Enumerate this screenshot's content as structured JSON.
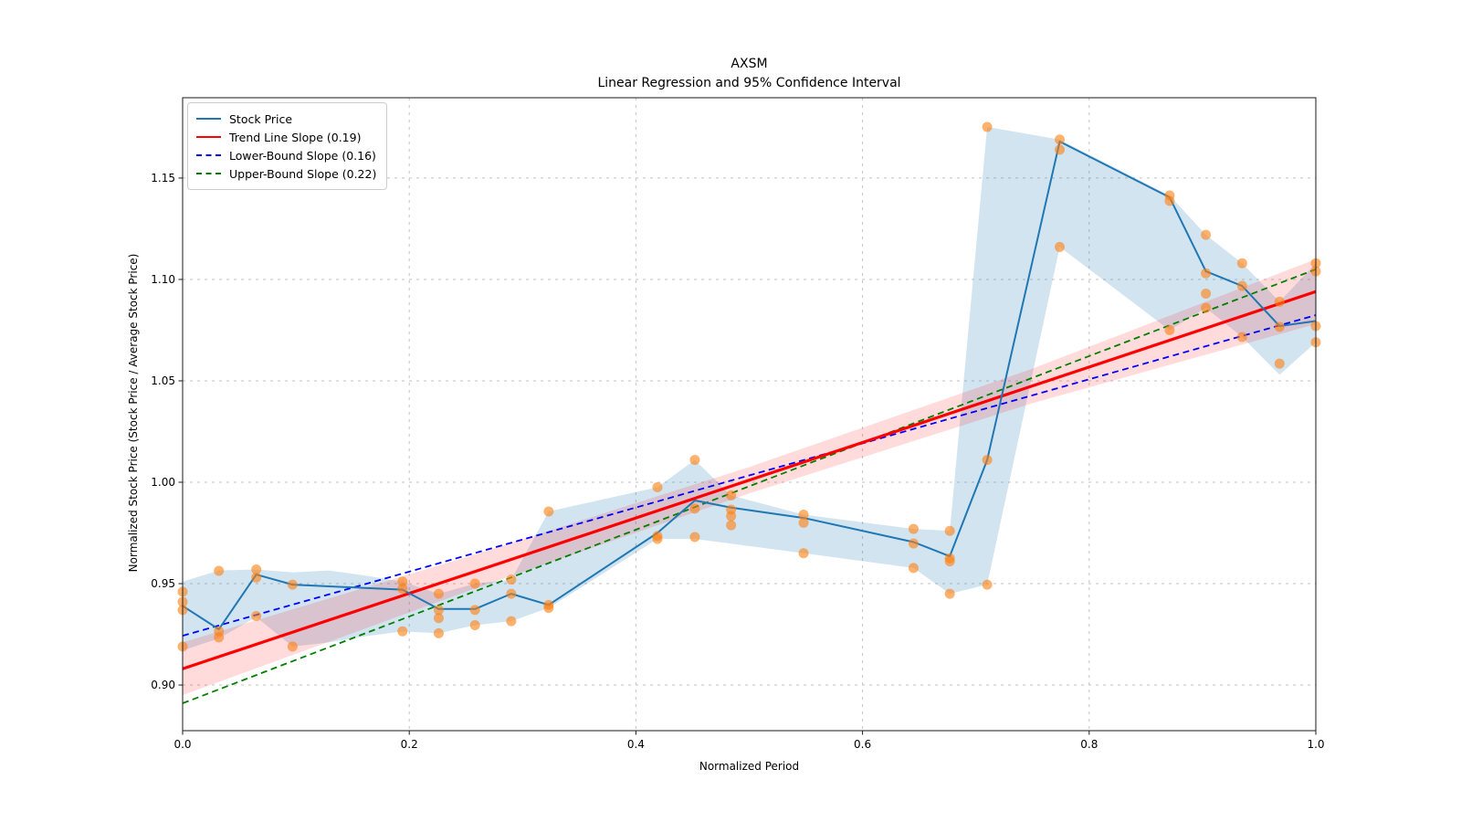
{
  "chart_data": {
    "type": "line",
    "title": "AXSM",
    "subtitle": "Linear Regression and 95% Confidence Interval",
    "xlabel": "Normalized Period",
    "ylabel": "Normalized Stock Price (Stock Price / Average Stock Price)",
    "xlim": [
      0,
      1
    ],
    "ylim": [
      0.8775,
      1.1896
    ],
    "grid": true,
    "legend_position": "upper-left",
    "x_ticks": [
      {
        "v": 0.0,
        "label": "0.0"
      },
      {
        "v": 0.2,
        "label": "0.2"
      },
      {
        "v": 0.4,
        "label": "0.4"
      },
      {
        "v": 0.6,
        "label": "0.6"
      },
      {
        "v": 0.8,
        "label": "0.8"
      },
      {
        "v": 1.0,
        "label": "1.0"
      }
    ],
    "y_ticks": [
      {
        "v": 0.9,
        "label": "0.90"
      },
      {
        "v": 0.95,
        "label": "0.95"
      },
      {
        "v": 1.0,
        "label": "1.00"
      },
      {
        "v": 1.05,
        "label": "1.05"
      },
      {
        "v": 1.1,
        "label": "1.10"
      },
      {
        "v": 1.15,
        "label": "1.15"
      }
    ],
    "legend": [
      {
        "label": "Stock Price",
        "color": "#1f77b4",
        "style": "solid"
      },
      {
        "label": "Trend Line Slope (0.19)",
        "color": "#ff0000",
        "style": "solid"
      },
      {
        "label": "Lower-Bound Slope (0.16)",
        "color": "#0000ff",
        "style": "dashed"
      },
      {
        "label": "Upper-Bound Slope (0.22)",
        "color": "#008000",
        "style": "dashed"
      }
    ],
    "series": {
      "stock_line": {
        "name": "Stock Price",
        "x": [
          0,
          0.032,
          0.065,
          0.097,
          0.194,
          0.226,
          0.258,
          0.29,
          0.323,
          0.419,
          0.452,
          0.484,
          0.548,
          0.645,
          0.677,
          0.71,
          0.774,
          0.871,
          0.903,
          0.935,
          0.968,
          1.0
        ],
        "y": [
          0.939,
          0.9275,
          0.9545,
          0.9495,
          0.947,
          0.9375,
          0.9375,
          0.945,
          0.9395,
          0.975,
          0.991,
          0.9875,
          0.9824,
          0.9705,
          0.9635,
          1.011,
          1.168,
          1.1405,
          1.104,
          1.0968,
          1.077,
          1.0795
        ]
      },
      "stock_range_band": {
        "x": [
          0,
          0.032,
          0.065,
          0.097,
          0.129,
          0.161,
          0.194,
          0.226,
          0.258,
          0.29,
          0.323,
          0.419,
          0.452,
          0.484,
          0.548,
          0.645,
          0.677,
          0.71,
          0.774,
          0.871,
          0.903,
          0.935,
          0.968,
          1.0
        ],
        "top": [
          0.951,
          0.9565,
          0.957,
          0.9555,
          0.9565,
          0.954,
          0.951,
          0.945,
          0.95,
          0.952,
          0.9856,
          0.9975,
          1.011,
          0.9935,
          0.984,
          0.977,
          0.976,
          1.1752,
          1.169,
          1.1414,
          1.122,
          1.108,
          1.089,
          1.108
        ],
        "bottom": [
          0.917,
          0.923,
          0.9335,
          0.919,
          0.921,
          0.924,
          0.9265,
          0.9255,
          0.9295,
          0.9315,
          0.938,
          0.972,
          0.972,
          0.9697,
          0.965,
          0.9577,
          0.945,
          0.9495,
          1.116,
          1.075,
          1.086,
          1.0716,
          1.053,
          1.069
        ]
      },
      "scatter_points": [
        [
          0.0,
          0.946
        ],
        [
          0.0,
          0.941
        ],
        [
          0.0,
          0.937
        ],
        [
          0.0,
          0.919
        ],
        [
          0.032,
          0.9563
        ],
        [
          0.032,
          0.9265
        ],
        [
          0.032,
          0.9235
        ],
        [
          0.065,
          0.957
        ],
        [
          0.065,
          0.953
        ],
        [
          0.065,
          0.934
        ],
        [
          0.097,
          0.9495
        ],
        [
          0.097,
          0.919
        ],
        [
          0.194,
          0.951
        ],
        [
          0.194,
          0.9475
        ],
        [
          0.194,
          0.9265
        ],
        [
          0.226,
          0.945
        ],
        [
          0.226,
          0.937
        ],
        [
          0.226,
          0.933
        ],
        [
          0.226,
          0.9255
        ],
        [
          0.258,
          0.95
        ],
        [
          0.258,
          0.937
        ],
        [
          0.258,
          0.9295
        ],
        [
          0.29,
          0.952
        ],
        [
          0.29,
          0.945
        ],
        [
          0.29,
          0.9315
        ],
        [
          0.323,
          0.9856
        ],
        [
          0.323,
          0.9395
        ],
        [
          0.323,
          0.938
        ],
        [
          0.419,
          0.9975
        ],
        [
          0.419,
          0.9735
        ],
        [
          0.419,
          0.972
        ],
        [
          0.452,
          1.011
        ],
        [
          0.452,
          0.987
        ],
        [
          0.452,
          0.973
        ],
        [
          0.484,
          0.9935
        ],
        [
          0.484,
          0.9865
        ],
        [
          0.484,
          0.9833
        ],
        [
          0.484,
          0.9788
        ],
        [
          0.548,
          0.984
        ],
        [
          0.548,
          0.98
        ],
        [
          0.548,
          0.965
        ],
        [
          0.645,
          0.977
        ],
        [
          0.645,
          0.9698
        ],
        [
          0.645,
          0.9577
        ],
        [
          0.677,
          0.976
        ],
        [
          0.677,
          0.9625
        ],
        [
          0.677,
          0.961
        ],
        [
          0.677,
          0.945
        ],
        [
          0.71,
          1.1752
        ],
        [
          0.71,
          1.011
        ],
        [
          0.71,
          0.9495
        ],
        [
          0.774,
          1.169
        ],
        [
          0.774,
          1.164
        ],
        [
          0.774,
          1.116
        ],
        [
          0.871,
          1.1414
        ],
        [
          0.871,
          1.1387
        ],
        [
          0.871,
          1.075
        ],
        [
          0.903,
          1.122
        ],
        [
          0.903,
          1.103
        ],
        [
          0.903,
          1.093
        ],
        [
          0.903,
          1.086
        ],
        [
          0.935,
          1.108
        ],
        [
          0.935,
          1.0968
        ],
        [
          0.935,
          1.0716
        ],
        [
          0.968,
          1.089
        ],
        [
          0.968,
          1.0766
        ],
        [
          0.968,
          1.0585
        ],
        [
          1.0,
          1.108
        ],
        [
          1.0,
          1.104
        ],
        [
          1.0,
          1.077
        ],
        [
          1.0,
          1.069
        ]
      ],
      "trend_line": {
        "name": "Trend Line Slope (0.19)",
        "slope": 0.19,
        "x": [
          0,
          1
        ],
        "y": [
          0.908,
          1.094
        ]
      },
      "confidence_band": {
        "x": [
          0,
          0.25,
          0.5,
          0.75,
          1
        ],
        "top": [
          0.921,
          0.963,
          1.0075,
          1.056,
          1.11
        ],
        "bottom": [
          0.895,
          0.946,
          0.9945,
          1.039,
          1.078
        ]
      },
      "lower_bound_line": {
        "name": "Lower-Bound Slope (0.16)",
        "slope": 0.16,
        "x": [
          0,
          1
        ],
        "y": [
          0.9243,
          1.0824
        ]
      },
      "upper_bound_line": {
        "name": "Upper-Bound Slope (0.22)",
        "slope": 0.22,
        "x": [
          0,
          1
        ],
        "y": [
          0.891,
          1.105
        ]
      }
    },
    "colors": {
      "stock_line": "#1f77b4",
      "scatter": "#ff7f0e",
      "stock_band": "#1f77b4",
      "trend_line": "#ff0000",
      "confidence_band": "#ff0000",
      "lower_bound": "#0000ff",
      "upper_bound": "#008000",
      "grid": "#c2c2c2",
      "spine": "#1a1a1a",
      "text": "#000000",
      "background": "#ffffff"
    }
  }
}
